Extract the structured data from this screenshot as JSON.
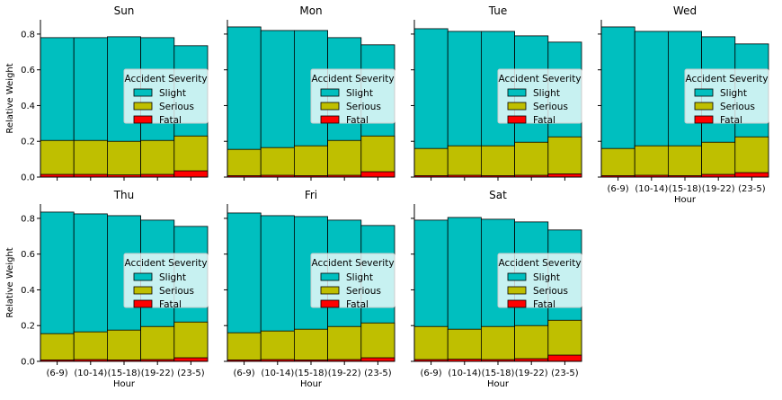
{
  "chart_data": {
    "type": "bar",
    "stacked": "overlaid",
    "x_tick_labels": [
      "(6-9)",
      "(10-14)",
      "(15-18)",
      "(19-22)",
      "(23-5)"
    ],
    "xlabel": "Hour",
    "ylabel": "Relative Weight",
    "ylim": [
      0,
      0.88
    ],
    "yticks": [
      0.0,
      0.2,
      0.4,
      0.6,
      0.8
    ],
    "ytick_labels": [
      "0.0",
      "0.2",
      "0.4",
      "0.6",
      "0.8"
    ],
    "grid": false,
    "legend": {
      "title": "Accident Severity",
      "position": "center-right",
      "items": [
        {
          "label": "Slight",
          "color": "#00bfbf"
        },
        {
          "label": "Serious",
          "color": "#bfbf00"
        },
        {
          "label": "Fatal",
          "color": "#ff0000"
        }
      ]
    },
    "panels": [
      {
        "title": "Sun",
        "slight": [
          0.78,
          0.78,
          0.785,
          0.78,
          0.735
        ],
        "serious": [
          0.205,
          0.205,
          0.2,
          0.205,
          0.23
        ],
        "fatal": [
          0.015,
          0.015,
          0.012,
          0.015,
          0.035
        ]
      },
      {
        "title": "Mon",
        "slight": [
          0.84,
          0.82,
          0.82,
          0.78,
          0.74
        ],
        "serious": [
          0.155,
          0.165,
          0.175,
          0.205,
          0.23
        ],
        "fatal": [
          0.008,
          0.01,
          0.008,
          0.01,
          0.03
        ]
      },
      {
        "title": "Tue",
        "slight": [
          0.83,
          0.815,
          0.815,
          0.79,
          0.755
        ],
        "serious": [
          0.16,
          0.175,
          0.175,
          0.195,
          0.225
        ],
        "fatal": [
          0.008,
          0.01,
          0.008,
          0.01,
          0.018
        ]
      },
      {
        "title": "Wed",
        "slight": [
          0.84,
          0.815,
          0.815,
          0.785,
          0.745
        ],
        "serious": [
          0.16,
          0.175,
          0.175,
          0.195,
          0.225
        ],
        "fatal": [
          0.008,
          0.01,
          0.008,
          0.015,
          0.025
        ]
      },
      {
        "title": "Thu",
        "slight": [
          0.835,
          0.825,
          0.815,
          0.79,
          0.755
        ],
        "serious": [
          0.155,
          0.165,
          0.175,
          0.195,
          0.22
        ],
        "fatal": [
          0.008,
          0.01,
          0.008,
          0.01,
          0.02
        ]
      },
      {
        "title": "Fri",
        "slight": [
          0.83,
          0.815,
          0.81,
          0.79,
          0.76
        ],
        "serious": [
          0.16,
          0.17,
          0.18,
          0.195,
          0.215
        ],
        "fatal": [
          0.008,
          0.01,
          0.008,
          0.01,
          0.02
        ]
      },
      {
        "title": "Sat",
        "slight": [
          0.79,
          0.805,
          0.795,
          0.78,
          0.735
        ],
        "serious": [
          0.195,
          0.18,
          0.195,
          0.2,
          0.23
        ],
        "fatal": [
          0.01,
          0.012,
          0.01,
          0.015,
          0.035
        ]
      }
    ]
  }
}
